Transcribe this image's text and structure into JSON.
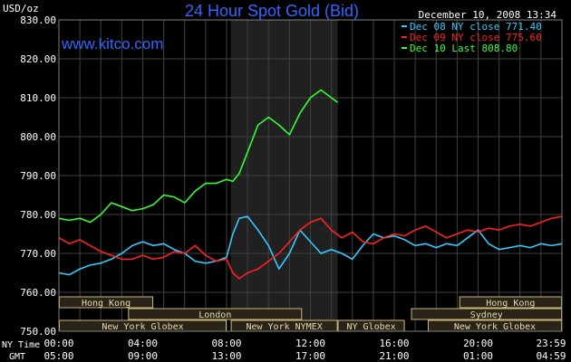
{
  "header": {
    "title": "24 Hour Spot Gold (Bid)",
    "unit": "USD/oz",
    "date": "December 10, 2008 13:34",
    "site": "www.kitco.com"
  },
  "chart_data": {
    "type": "line",
    "title": "24 Hour Spot Gold (Bid)",
    "ylabel": "USD/oz",
    "ylim": [
      750,
      830
    ],
    "yticks": [
      "830.00",
      "820.00",
      "810.00",
      "800.00",
      "790.00",
      "780.00",
      "770.00",
      "760.00",
      "750.00"
    ],
    "ytick_values": [
      830,
      820,
      810,
      800,
      790,
      780,
      770,
      760,
      750
    ],
    "xlim": [
      0,
      24
    ],
    "xtick_hours": [
      0,
      4,
      8,
      12,
      16,
      20,
      24
    ],
    "xticks_ny": [
      "00:00",
      "04:00",
      "08:00",
      "12:00",
      "16:00",
      "20:00",
      "23:59"
    ],
    "xticks_gmt": [
      "05:00",
      "09:00",
      "13:00",
      "17:00",
      "21:00",
      "01:00",
      "04:59"
    ],
    "xaxis_label_ny": "NY Time",
    "xaxis_label_gmt": "GMT",
    "grid": true,
    "legend_position": "top-right",
    "highlight_range": [
      8.2,
      13.3
    ],
    "series": [
      {
        "name": "Dec 08 NY close 771.40",
        "color": "#33ccff",
        "x": [
          0,
          0.5,
          1,
          1.5,
          2,
          2.5,
          3,
          3.5,
          4,
          4.5,
          5,
          5.5,
          6,
          6.5,
          7,
          7.5,
          8,
          8.3,
          8.6,
          9,
          9.5,
          10,
          10.5,
          11,
          11.5,
          12,
          12.5,
          13,
          13.5,
          14,
          14.5,
          15,
          15.5,
          16,
          16.5,
          17,
          17.5,
          18,
          18.5,
          19,
          19.5,
          20,
          20.5,
          21,
          21.5,
          22,
          22.5,
          23,
          23.5,
          24
        ],
        "values": [
          765,
          764.5,
          766,
          767,
          767.5,
          768.5,
          770,
          772,
          773,
          772,
          772.5,
          771,
          770,
          768,
          767.5,
          768,
          769,
          775,
          779,
          779.5,
          776,
          772,
          766,
          770,
          776,
          773,
          770,
          771,
          770,
          768.5,
          772,
          775,
          774,
          774.5,
          773.5,
          772,
          772.5,
          771.5,
          772.5,
          772,
          774,
          776,
          772.5,
          771,
          771.5,
          772,
          771.5,
          772.5,
          772,
          772.5
        ]
      },
      {
        "name": "Dec 09 NY close 775.60",
        "color": "#ff2020",
        "x": [
          0,
          0.5,
          1,
          1.5,
          2,
          2.5,
          3,
          3.5,
          4,
          4.5,
          5,
          5.5,
          6,
          6.5,
          7,
          7.5,
          8,
          8.3,
          8.6,
          9,
          9.5,
          10,
          10.5,
          11,
          11.5,
          12,
          12.5,
          13,
          13.5,
          14,
          14.5,
          15,
          15.5,
          16,
          16.5,
          17,
          17.5,
          18,
          18.5,
          19,
          19.5,
          20,
          20.5,
          21,
          21.5,
          22,
          22.5,
          23,
          23.5,
          24
        ],
        "values": [
          774,
          772.5,
          773.5,
          772,
          770.5,
          769.5,
          768.5,
          768.5,
          769.5,
          768.5,
          769,
          770.5,
          770,
          772,
          769.5,
          768,
          768.5,
          765,
          763.5,
          765,
          766,
          768,
          770,
          773,
          776,
          778,
          779,
          776,
          774,
          775.5,
          773,
          772.5,
          774,
          775,
          774.5,
          776,
          777,
          775.5,
          774,
          775,
          776,
          775.5,
          776.5,
          776,
          777,
          777.5,
          777,
          778,
          779,
          779.5
        ]
      },
      {
        "name": "Dec 10 Last 808.80",
        "color": "#33ff33",
        "x": [
          0,
          0.5,
          1,
          1.5,
          2,
          2.5,
          3,
          3.5,
          4,
          4.5,
          5,
          5.5,
          6,
          6.5,
          7,
          7.5,
          8,
          8.3,
          8.6,
          9,
          9.5,
          10,
          10.5,
          11,
          11.5,
          12,
          12.5,
          13,
          13.3
        ],
        "values": [
          779,
          778.5,
          779,
          778,
          780,
          783,
          782,
          781,
          781.5,
          782.5,
          785,
          784.5,
          783,
          786,
          788,
          788,
          789,
          788.5,
          790.5,
          796,
          803,
          805,
          803,
          800.5,
          806,
          810,
          812,
          810,
          808.8
        ]
      }
    ],
    "sessions": [
      {
        "label": "Hong Kong",
        "row": 1,
        "start": 0,
        "end": 4.5
      },
      {
        "label": "London",
        "row": 2,
        "start": 3.3,
        "end": 11.6
      },
      {
        "label": "New York Globex",
        "row": 3,
        "start": 0,
        "end": 8.0
      },
      {
        "label": "New York NYMEX",
        "row": 3,
        "start": 8.2,
        "end": 13.3
      },
      {
        "label": "NY Globex",
        "row": 3,
        "start": 13.3,
        "end": 16.5
      },
      {
        "label": "Hong Kong",
        "row": 1,
        "start": 19.1,
        "end": 24
      },
      {
        "label": "Sydney",
        "row": 2,
        "start": 16.8,
        "end": 24
      },
      {
        "label": "New York Globex",
        "row": 3,
        "start": 17.6,
        "end": 24
      }
    ]
  },
  "colors": {
    "background": "#000000",
    "grid": "#404040",
    "axis_text": "#ffffff",
    "title": "#3366ff",
    "site": "#3366ff",
    "highlight": "#202020",
    "session_fill": "#2a2418",
    "session_border": "#c8b87a",
    "session_text": "#e6dcae"
  }
}
